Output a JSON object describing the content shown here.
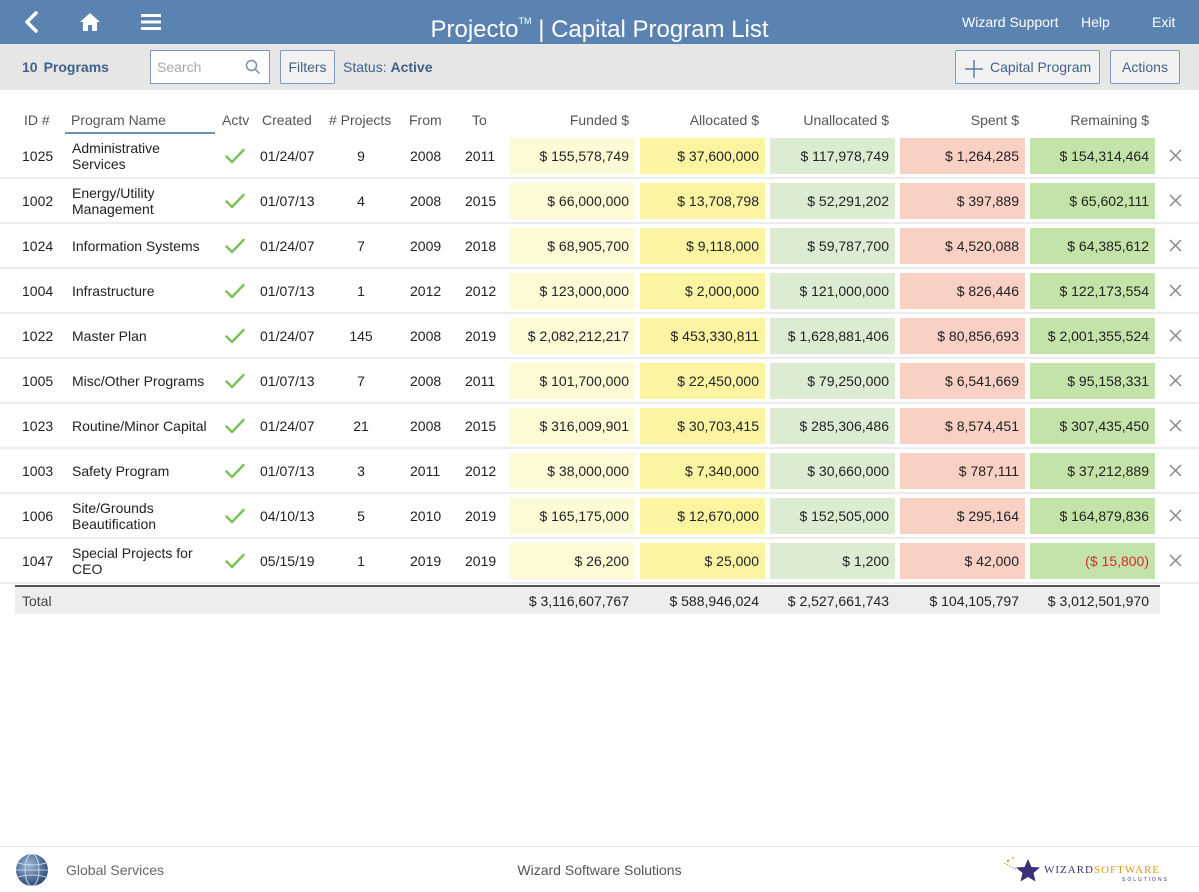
{
  "header": {
    "app_name": "Projecto",
    "trademark": "TM",
    "separator": "|",
    "page_title": "Capital Program List",
    "links": {
      "wizard_support": "Wizard Support",
      "help": "Help",
      "exit": "Exit"
    },
    "color": "#5b83b1"
  },
  "toolbar": {
    "program_count": "10",
    "program_count_label": "Programs",
    "search_placeholder": "Search",
    "filters_label": "Filters",
    "status_label": "Status:",
    "status_value": "Active",
    "add_label": "Capital Program",
    "actions_label": "Actions"
  },
  "table": {
    "columns": {
      "id": "ID #",
      "name": "Program Name",
      "active": "Actv",
      "created": "Created",
      "projects": "# Projects",
      "from": "From",
      "to": "To",
      "funded": "Funded $",
      "allocated": "Allocated $",
      "unallocated": "Unallocated $",
      "spent": "Spent $",
      "remaining": "Remaining $"
    },
    "rows": [
      {
        "id": "1025",
        "name": "Administrative Services",
        "created": "01/24/07",
        "projects": "9",
        "from": "2008",
        "to": "2011",
        "funded": "$ 155,578,749",
        "allocated": "$ 37,600,000",
        "unallocated": "$ 117,978,749",
        "spent": "$ 1,264,285",
        "remaining": "$ 154,314,464"
      },
      {
        "id": "1002",
        "name": "Energy/Utility Management",
        "created": "01/07/13",
        "projects": "4",
        "from": "2008",
        "to": "2015",
        "funded": "$ 66,000,000",
        "allocated": "$ 13,708,798",
        "unallocated": "$ 52,291,202",
        "spent": "$ 397,889",
        "remaining": "$ 65,602,111"
      },
      {
        "id": "1024",
        "name": "Information Systems",
        "created": "01/24/07",
        "projects": "7",
        "from": "2009",
        "to": "2018",
        "funded": "$ 68,905,700",
        "allocated": "$ 9,118,000",
        "unallocated": "$ 59,787,700",
        "spent": "$ 4,520,088",
        "remaining": "$ 64,385,612"
      },
      {
        "id": "1004",
        "name": "Infrastructure",
        "created": "01/07/13",
        "projects": "1",
        "from": "2012",
        "to": "2012",
        "funded": "$ 123,000,000",
        "allocated": "$ 2,000,000",
        "unallocated": "$ 121,000,000",
        "spent": "$ 826,446",
        "remaining": "$ 122,173,554"
      },
      {
        "id": "1022",
        "name": "Master Plan",
        "created": "01/24/07",
        "projects": "145",
        "from": "2008",
        "to": "2019",
        "funded": "$ 2,082,212,217",
        "allocated": "$ 453,330,811",
        "unallocated": "$ 1,628,881,406",
        "spent": "$ 80,856,693",
        "remaining": "$ 2,001,355,524"
      },
      {
        "id": "1005",
        "name": "Misc/Other Programs",
        "created": "01/07/13",
        "projects": "7",
        "from": "2008",
        "to": "2011",
        "funded": "$ 101,700,000",
        "allocated": "$ 22,450,000",
        "unallocated": "$ 79,250,000",
        "spent": "$ 6,541,669",
        "remaining": "$ 95,158,331"
      },
      {
        "id": "1023",
        "name": "Routine/Minor Capital",
        "created": "01/24/07",
        "projects": "21",
        "from": "2008",
        "to": "2015",
        "funded": "$ 316,009,901",
        "allocated": "$ 30,703,415",
        "unallocated": "$ 285,306,486",
        "spent": "$ 8,574,451",
        "remaining": "$ 307,435,450"
      },
      {
        "id": "1003",
        "name": "Safety Program",
        "created": "01/07/13",
        "projects": "3",
        "from": "2011",
        "to": "2012",
        "funded": "$ 38,000,000",
        "allocated": "$ 7,340,000",
        "unallocated": "$ 30,660,000",
        "spent": "$ 787,111",
        "remaining": "$ 37,212,889"
      },
      {
        "id": "1006",
        "name": "Site/Grounds Beautification",
        "created": "04/10/13",
        "projects": "5",
        "from": "2010",
        "to": "2019",
        "funded": "$ 165,175,000",
        "allocated": "$ 12,670,000",
        "unallocated": "$ 152,505,000",
        "spent": "$ 295,164",
        "remaining": "$ 164,879,836"
      },
      {
        "id": "1047",
        "name": "Special Projects for CEO",
        "created": "05/15/19",
        "projects": "1",
        "from": "2019",
        "to": "2019",
        "funded": "$ 26,200",
        "allocated": "$ 25,000",
        "unallocated": "$ 1,200",
        "spent": "$ 42,000",
        "remaining": "($ 15,800)",
        "remaining_negative": true
      }
    ],
    "totals": {
      "label": "Total",
      "funded": "$ 3,116,607,767",
      "allocated": "$ 588,946,024",
      "unallocated": "$ 2,527,661,743",
      "spent": "$ 104,105,797",
      "remaining": "$ 3,012,501,970"
    },
    "colors": {
      "funded": "#fdfbd6",
      "allocated": "#fbf5a2",
      "unallocated": "#dbecd3",
      "spent": "#f9d1c4",
      "remaining": "#c3e3a8",
      "negative": "#d32f2f",
      "check": "#7cc25a"
    },
    "icons": {
      "active": "check-icon",
      "delete": "close-icon"
    }
  },
  "footer": {
    "left_label": "Global Services",
    "center_label": "Wizard Software Solutions",
    "logo_text_main": "WIZARD",
    "logo_text_accent": "SOFTWARE",
    "logo_subtext": "SOLUTIONS"
  }
}
